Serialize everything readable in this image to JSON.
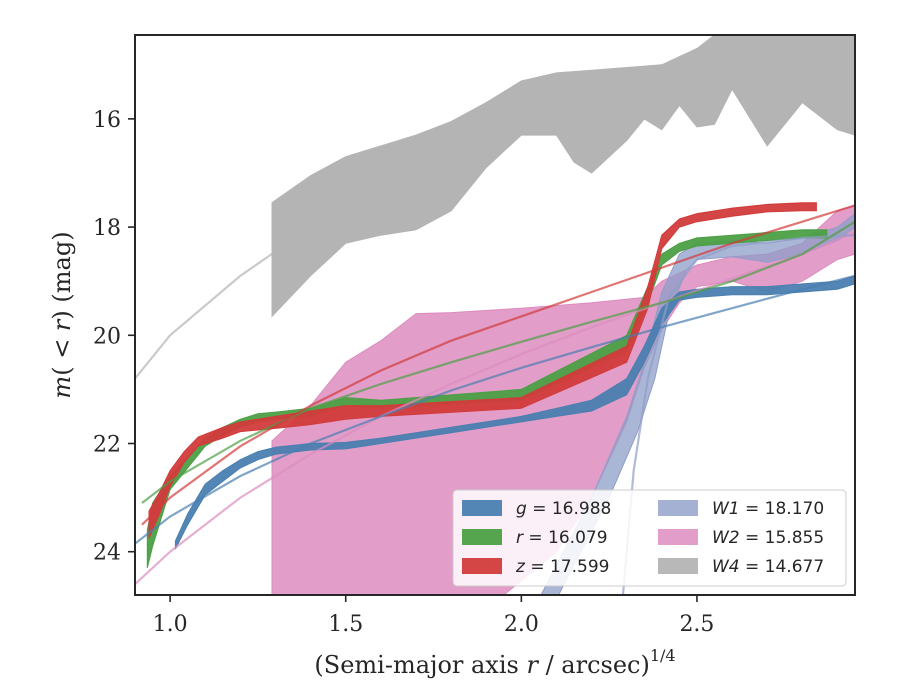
{
  "chart_data": {
    "type": "area",
    "xlabel": {
      "main": "(Semi-major axis ",
      "var": "r",
      "mid": " / arcsec)",
      "sup": "1/4"
    },
    "ylabel": {
      "pre": "m",
      "mid": "( < ",
      "var": "r",
      "post": ") (mag)"
    },
    "xlim": [
      0.9,
      2.95
    ],
    "ylim": [
      24.8,
      14.45
    ],
    "y_inverted": true,
    "xticks": [
      "1.0",
      "1.5",
      "2.0",
      "2.5"
    ],
    "xtick_values": [
      1.0,
      1.5,
      2.0,
      2.5
    ],
    "yticks": [
      "16",
      "18",
      "20",
      "22",
      "24"
    ],
    "ytick_values": [
      16,
      18,
      20,
      22,
      24
    ],
    "grid": false,
    "legend": {
      "placement": "lower-right",
      "columns": 2
    },
    "series": [
      {
        "name": "g",
        "value": "16.988",
        "color": "#4a7fb0",
        "band_upper": [
          [
            1.015,
            23.8
          ],
          [
            1.05,
            23.3
          ],
          [
            1.1,
            22.75
          ],
          [
            1.15,
            22.5
          ],
          [
            1.2,
            22.3
          ],
          [
            1.25,
            22.15
          ],
          [
            1.3,
            22.07
          ],
          [
            1.4,
            22.0
          ],
          [
            1.5,
            21.98
          ],
          [
            1.6,
            21.9
          ],
          [
            1.7,
            21.8
          ],
          [
            1.8,
            21.7
          ],
          [
            1.9,
            21.6
          ],
          [
            2.0,
            21.5
          ],
          [
            2.1,
            21.35
          ],
          [
            2.2,
            21.2
          ],
          [
            2.3,
            20.8
          ],
          [
            2.35,
            20.2
          ],
          [
            2.4,
            19.5
          ],
          [
            2.45,
            19.2
          ],
          [
            2.5,
            19.15
          ],
          [
            2.6,
            19.1
          ],
          [
            2.7,
            19.1
          ],
          [
            2.8,
            19.05
          ],
          [
            2.9,
            19.0
          ],
          [
            2.95,
            18.9
          ]
        ],
        "band_lower": [
          [
            1.015,
            23.95
          ],
          [
            1.05,
            23.5
          ],
          [
            1.1,
            22.95
          ],
          [
            1.15,
            22.7
          ],
          [
            1.2,
            22.45
          ],
          [
            1.25,
            22.3
          ],
          [
            1.3,
            22.2
          ],
          [
            1.4,
            22.12
          ],
          [
            1.5,
            22.1
          ],
          [
            1.6,
            22.0
          ],
          [
            1.7,
            21.9
          ],
          [
            1.8,
            21.8
          ],
          [
            1.9,
            21.7
          ],
          [
            2.0,
            21.6
          ],
          [
            2.1,
            21.5
          ],
          [
            2.2,
            21.4
          ],
          [
            2.3,
            21.1
          ],
          [
            2.35,
            20.5
          ],
          [
            2.4,
            19.8
          ],
          [
            2.45,
            19.35
          ],
          [
            2.5,
            19.3
          ],
          [
            2.6,
            19.25
          ],
          [
            2.7,
            19.25
          ],
          [
            2.8,
            19.2
          ],
          [
            2.9,
            19.15
          ],
          [
            2.95,
            19.05
          ]
        ],
        "model": [
          [
            0.9,
            23.85
          ],
          [
            1.0,
            23.35
          ],
          [
            1.2,
            22.6
          ],
          [
            1.4,
            22.0
          ],
          [
            1.6,
            21.5
          ],
          [
            1.8,
            21.02
          ],
          [
            2.0,
            20.6
          ],
          [
            2.2,
            20.22
          ],
          [
            2.4,
            19.85
          ],
          [
            2.6,
            19.5
          ],
          [
            2.8,
            19.15
          ],
          [
            2.95,
            18.9
          ]
        ]
      },
      {
        "name": "r",
        "value": "16.079",
        "color": "#4c9f45",
        "band_upper": [
          [
            0.935,
            23.6
          ],
          [
            0.95,
            23.1
          ],
          [
            1.0,
            22.6
          ],
          [
            1.05,
            22.25
          ],
          [
            1.1,
            21.9
          ],
          [
            1.15,
            21.7
          ],
          [
            1.2,
            21.55
          ],
          [
            1.25,
            21.45
          ],
          [
            1.3,
            21.42
          ],
          [
            1.4,
            21.35
          ],
          [
            1.5,
            21.15
          ],
          [
            1.6,
            21.2
          ],
          [
            2.0,
            21.0
          ],
          [
            2.3,
            20.0
          ],
          [
            2.36,
            19.1
          ],
          [
            2.4,
            18.5
          ],
          [
            2.45,
            18.3
          ],
          [
            2.5,
            18.2
          ],
          [
            2.6,
            18.15
          ],
          [
            2.7,
            18.1
          ],
          [
            2.8,
            18.05
          ],
          [
            2.87,
            18.05
          ]
        ],
        "band_lower": [
          [
            0.935,
            24.3
          ],
          [
            0.95,
            23.9
          ],
          [
            1.0,
            22.85
          ],
          [
            1.05,
            22.45
          ],
          [
            1.1,
            22.05
          ],
          [
            1.15,
            21.85
          ],
          [
            1.2,
            21.7
          ],
          [
            1.25,
            21.6
          ],
          [
            1.3,
            21.55
          ],
          [
            1.4,
            21.5
          ],
          [
            1.5,
            21.3
          ],
          [
            1.6,
            21.35
          ],
          [
            2.0,
            21.2
          ],
          [
            2.3,
            20.3
          ],
          [
            2.36,
            19.4
          ],
          [
            2.4,
            18.7
          ],
          [
            2.45,
            18.45
          ],
          [
            2.5,
            18.35
          ],
          [
            2.6,
            18.3
          ],
          [
            2.7,
            18.25
          ],
          [
            2.8,
            18.2
          ],
          [
            2.87,
            18.2
          ]
        ],
        "model": [
          [
            0.92,
            23.1
          ],
          [
            1.0,
            22.7
          ],
          [
            1.2,
            21.95
          ],
          [
            1.4,
            21.35
          ],
          [
            1.6,
            20.9
          ],
          [
            1.8,
            20.5
          ],
          [
            2.0,
            20.12
          ],
          [
            2.2,
            19.75
          ],
          [
            2.4,
            19.4
          ],
          [
            2.6,
            19.0
          ],
          [
            2.8,
            18.5
          ],
          [
            2.95,
            17.9
          ]
        ]
      },
      {
        "name": "z",
        "value": "17.599",
        "color": "#d23b3b",
        "band_upper": [
          [
            0.94,
            23.25
          ],
          [
            0.97,
            22.9
          ],
          [
            1.0,
            22.5
          ],
          [
            1.04,
            22.15
          ],
          [
            1.08,
            21.88
          ],
          [
            1.15,
            21.7
          ],
          [
            1.2,
            21.6
          ],
          [
            1.3,
            21.5
          ],
          [
            1.4,
            21.4
          ],
          [
            1.5,
            21.3
          ],
          [
            1.6,
            21.3
          ],
          [
            2.0,
            21.15
          ],
          [
            2.3,
            20.2
          ],
          [
            2.36,
            19.1
          ],
          [
            2.4,
            18.15
          ],
          [
            2.45,
            17.85
          ],
          [
            2.5,
            17.75
          ],
          [
            2.6,
            17.65
          ],
          [
            2.7,
            17.58
          ],
          [
            2.8,
            17.55
          ],
          [
            2.84,
            17.55
          ]
        ],
        "band_lower": [
          [
            0.94,
            23.75
          ],
          [
            0.97,
            23.3
          ],
          [
            1.0,
            22.8
          ],
          [
            1.04,
            22.35
          ],
          [
            1.08,
            22.05
          ],
          [
            1.15,
            21.9
          ],
          [
            1.2,
            21.78
          ],
          [
            1.3,
            21.72
          ],
          [
            1.4,
            21.65
          ],
          [
            1.5,
            21.55
          ],
          [
            1.6,
            21.5
          ],
          [
            2.0,
            21.35
          ],
          [
            2.3,
            20.5
          ],
          [
            2.36,
            19.5
          ],
          [
            2.4,
            18.4
          ],
          [
            2.45,
            18.0
          ],
          [
            2.5,
            17.9
          ],
          [
            2.6,
            17.8
          ],
          [
            2.7,
            17.72
          ],
          [
            2.8,
            17.7
          ],
          [
            2.84,
            17.7
          ]
        ],
        "model": [
          [
            0.92,
            23.5
          ],
          [
            1.0,
            23.0
          ],
          [
            1.2,
            22.05
          ],
          [
            1.4,
            21.3
          ],
          [
            1.6,
            20.65
          ],
          [
            1.8,
            20.1
          ],
          [
            2.0,
            19.65
          ],
          [
            2.2,
            19.2
          ],
          [
            2.4,
            18.75
          ],
          [
            2.6,
            18.3
          ],
          [
            2.8,
            17.9
          ],
          [
            2.95,
            17.6
          ]
        ]
      },
      {
        "name": "W1",
        "value": "18.170",
        "color": "#8e9ec8",
        "band_upper": [
          [
            2.0,
            25.5
          ],
          [
            2.2,
            23.0
          ],
          [
            2.3,
            21.5
          ],
          [
            2.35,
            20.5
          ],
          [
            2.4,
            19.2
          ],
          [
            2.45,
            18.5
          ],
          [
            2.5,
            18.3
          ],
          [
            2.6,
            18.25
          ],
          [
            2.7,
            18.3
          ],
          [
            2.8,
            18.2
          ],
          [
            2.9,
            18.0
          ],
          [
            2.95,
            17.75
          ]
        ],
        "band_lower": [
          [
            2.05,
            25.5
          ],
          [
            2.25,
            23.0
          ],
          [
            2.33,
            21.8
          ],
          [
            2.38,
            20.8
          ],
          [
            2.42,
            19.6
          ],
          [
            2.47,
            18.8
          ],
          [
            2.5,
            18.6
          ],
          [
            2.6,
            18.55
          ],
          [
            2.7,
            18.65
          ],
          [
            2.8,
            18.5
          ],
          [
            2.9,
            18.25
          ],
          [
            2.95,
            18.0
          ]
        ],
        "model": [
          [
            2.28,
            25.5
          ],
          [
            2.32,
            22.5
          ],
          [
            2.36,
            20.8
          ],
          [
            2.42,
            19.3
          ],
          [
            2.5,
            18.6
          ],
          [
            2.6,
            18.35
          ],
          [
            2.8,
            18.2
          ],
          [
            2.95,
            18.15
          ]
        ]
      },
      {
        "name": "W2",
        "value": "15.855",
        "color": "#dd8cc0",
        "band_upper": [
          [
            1.29,
            24.8
          ],
          [
            1.29,
            21.95
          ],
          [
            1.4,
            21.3
          ],
          [
            1.5,
            20.5
          ],
          [
            1.6,
            20.1
          ],
          [
            1.7,
            19.6
          ],
          [
            1.8,
            19.58
          ],
          [
            2.0,
            19.5
          ],
          [
            2.2,
            19.4
          ],
          [
            2.35,
            19.3
          ],
          [
            2.4,
            19.0
          ],
          [
            2.5,
            18.7
          ],
          [
            2.6,
            18.55
          ],
          [
            2.7,
            18.5
          ],
          [
            2.8,
            18.3
          ],
          [
            2.9,
            17.7
          ],
          [
            2.95,
            17.6
          ]
        ],
        "band_lower": [
          [
            1.29,
            24.8
          ],
          [
            1.5,
            24.8
          ],
          [
            1.95,
            24.8
          ],
          [
            2.1,
            24.0
          ],
          [
            2.2,
            23.0
          ],
          [
            2.3,
            21.6
          ],
          [
            2.35,
            20.6
          ],
          [
            2.4,
            19.9
          ],
          [
            2.45,
            19.4
          ],
          [
            2.5,
            19.1
          ],
          [
            2.6,
            19.0
          ],
          [
            2.7,
            19.2
          ],
          [
            2.8,
            19.0
          ],
          [
            2.9,
            18.6
          ],
          [
            2.95,
            18.5
          ]
        ],
        "model": [
          [
            0.9,
            24.6
          ],
          [
            1.0,
            24.0
          ],
          [
            1.2,
            23.0
          ],
          [
            1.4,
            22.2
          ],
          [
            1.6,
            21.5
          ],
          [
            1.8,
            20.9
          ],
          [
            2.0,
            20.35
          ],
          [
            2.2,
            19.85
          ],
          [
            2.4,
            19.4
          ],
          [
            2.6,
            18.95
          ],
          [
            2.8,
            18.5
          ],
          [
            2.95,
            18.1
          ]
        ]
      },
      {
        "name": "W4",
        "value": "14.677",
        "color": "#b4b4b4",
        "band_upper": [
          [
            1.29,
            17.55
          ],
          [
            1.4,
            17.05
          ],
          [
            1.5,
            16.7
          ],
          [
            1.6,
            16.5
          ],
          [
            1.7,
            16.3
          ],
          [
            1.8,
            16.05
          ],
          [
            1.9,
            15.7
          ],
          [
            2.0,
            15.3
          ],
          [
            2.1,
            15.15
          ],
          [
            2.2,
            15.1
          ],
          [
            2.3,
            15.05
          ],
          [
            2.4,
            15.0
          ],
          [
            2.5,
            14.7
          ],
          [
            2.55,
            14.45
          ],
          [
            2.95,
            14.45
          ]
        ],
        "band_lower": [
          [
            1.29,
            19.65
          ],
          [
            1.4,
            18.9
          ],
          [
            1.5,
            18.3
          ],
          [
            1.6,
            18.15
          ],
          [
            1.7,
            18.05
          ],
          [
            1.8,
            17.7
          ],
          [
            1.9,
            16.9
          ],
          [
            2.0,
            16.3
          ],
          [
            2.1,
            16.3
          ],
          [
            2.15,
            16.8
          ],
          [
            2.2,
            17.0
          ],
          [
            2.3,
            16.4
          ],
          [
            2.35,
            16.0
          ],
          [
            2.4,
            16.2
          ],
          [
            2.45,
            15.75
          ],
          [
            2.5,
            16.15
          ],
          [
            2.55,
            16.1
          ],
          [
            2.6,
            15.45
          ],
          [
            2.7,
            16.5
          ],
          [
            2.8,
            15.7
          ],
          [
            2.9,
            16.2
          ],
          [
            2.95,
            16.3
          ]
        ],
        "model": [
          [
            0.9,
            20.8
          ],
          [
            1.0,
            20.0
          ],
          [
            1.2,
            18.9
          ],
          [
            1.4,
            18.0
          ],
          [
            1.6,
            17.3
          ],
          [
            1.8,
            16.7
          ],
          [
            2.0,
            16.2
          ],
          [
            2.2,
            15.8
          ],
          [
            2.4,
            15.45
          ],
          [
            2.6,
            15.2
          ],
          [
            2.8,
            15.0
          ],
          [
            2.95,
            14.9
          ]
        ]
      }
    ]
  }
}
